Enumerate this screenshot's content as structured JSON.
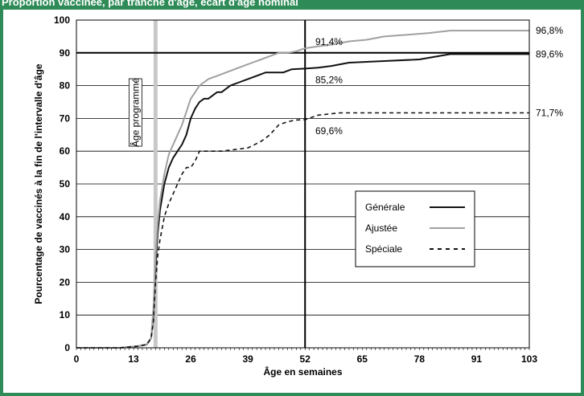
{
  "header": {
    "title": "Proportion vaccinée, par tranche d'âge, écart d'âge nominal"
  },
  "chart_data": {
    "type": "line",
    "xlabel": "Âge en semaines",
    "ylabel": "Pourcentage de vaccinés à la fin de l'intervalle d'âge",
    "xlim": [
      0,
      103
    ],
    "ylim": [
      0,
      100
    ],
    "x_ticks": [
      0,
      13,
      26,
      39,
      52,
      65,
      78,
      91,
      103
    ],
    "y_ticks": [
      0,
      10,
      20,
      30,
      40,
      50,
      60,
      70,
      80,
      90,
      100
    ],
    "grid": "horizontal",
    "legend_position": "lower-right",
    "reference_lines": {
      "vertical_x": 52,
      "horizontal_y": 90,
      "scheduled_age_x": 18,
      "scheduled_age_label": "Âge programmé"
    },
    "annotations": [
      {
        "text": "91,4%",
        "x": 52.5,
        "y": 91.4
      },
      {
        "text": "85,2%",
        "x": 52.5,
        "y": 85.2
      },
      {
        "text": "69,6%",
        "x": 52.5,
        "y": 69.6
      },
      {
        "text": "96,8%",
        "x": 103,
        "y": 96.8
      },
      {
        "text": "89,6%",
        "x": 103,
        "y": 89.6
      },
      {
        "text": "71,7%",
        "x": 103,
        "y": 71.7
      }
    ],
    "series": [
      {
        "name": "Générale",
        "color": "#111111",
        "style": "solid",
        "x": [
          0,
          10,
          14,
          16,
          17,
          17.5,
          18,
          18.5,
          19,
          20,
          21,
          22,
          23,
          24,
          25,
          26,
          27,
          28,
          29,
          30,
          31,
          32,
          33,
          35,
          37,
          39,
          41,
          43,
          45,
          47,
          49,
          52,
          55,
          58,
          62,
          70,
          78,
          85,
          103
        ],
        "y": [
          0,
          0,
          0.5,
          1,
          3,
          10,
          25,
          35,
          42,
          50,
          55,
          58,
          60,
          62,
          65,
          70,
          73,
          75,
          76,
          76,
          77,
          78,
          78,
          80,
          81,
          82,
          83,
          84,
          84,
          84,
          85,
          85.2,
          85.5,
          86,
          87,
          87.5,
          88,
          89.6,
          89.6
        ]
      },
      {
        "name": "Ajustée",
        "color": "#a0a0a0",
        "style": "solid",
        "x": [
          0,
          10,
          14,
          16,
          17,
          17.5,
          18,
          18.5,
          19,
          20,
          21,
          22,
          23,
          24,
          25,
          26,
          27,
          28,
          29,
          30,
          32,
          34,
          36,
          38,
          40,
          42,
          44,
          46,
          48,
          50,
          52,
          55,
          58,
          62,
          66,
          70,
          75,
          80,
          85,
          103
        ],
        "y": [
          0,
          0,
          0.5,
          1,
          3,
          12,
          28,
          38,
          45,
          53,
          59,
          62,
          65,
          68,
          72,
          76,
          78,
          80,
          81,
          82,
          83,
          84,
          85,
          86,
          87,
          88,
          89,
          90,
          90,
          90.5,
          91.4,
          92,
          92.5,
          93.5,
          94,
          95,
          95.5,
          96,
          96.8,
          96.8
        ]
      },
      {
        "name": "Spéciale",
        "color": "#111111",
        "style": "dashed",
        "x": [
          0,
          10,
          14,
          16,
          17,
          17.5,
          18,
          18.5,
          19,
          20,
          21,
          22,
          23,
          24,
          25,
          26,
          27,
          28,
          29,
          30,
          33,
          36,
          39,
          42,
          44,
          46,
          48,
          50,
          52,
          55,
          60,
          103
        ],
        "y": [
          0,
          0,
          0.5,
          1,
          3,
          8,
          20,
          28,
          33,
          40,
          44,
          47,
          50,
          53,
          55,
          55,
          57,
          60,
          60,
          60,
          60,
          60.5,
          61,
          63,
          65,
          68,
          69,
          69.5,
          69.6,
          71,
          71.7,
          71.7
        ]
      }
    ]
  }
}
